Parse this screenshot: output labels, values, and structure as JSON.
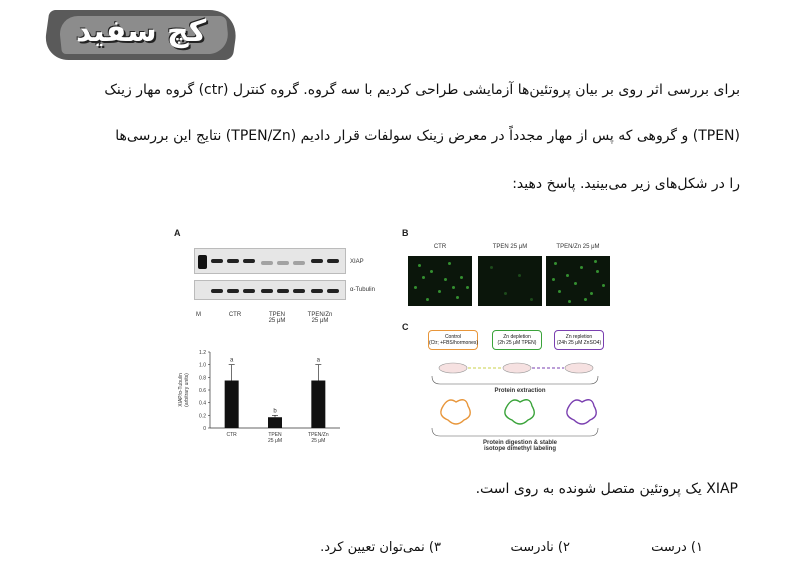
{
  "logo": {
    "text": "کچ سفید"
  },
  "question": {
    "line1": "برای بررسی اثر روی بر بیان پروتئین‌ها آزمایشی طراحی کردیم با سه گروه. گروه کنترل (ctr) گروه مهار زینک",
    "line2": "(TPEN) و گروهی که پس از مهار مجدداً در معرض زینک سولفات قرار دادیم (TPEN/Zn) نتایج این بررسی‌ها",
    "line3": "را در شکل‌های زیر می‌بینید. پاسخ دهید:"
  },
  "figure": {
    "panel_a": "A",
    "panel_b": "B",
    "panel_c": "C",
    "blot_labels": {
      "xiap": "XIAP",
      "tubulin": "α-Tubulin",
      "marker": "M"
    },
    "lane_groups": [
      "CTR",
      "TPEN\n25 μM",
      "TPEN/Zn\n25 μM"
    ],
    "micro_labels": [
      "CTR",
      "TPEN 25 μM",
      "TPEN/Zn 25 μM"
    ],
    "scheme": {
      "control": "Control\n(Ctr; +FBS/hormones)",
      "depletion": "Zn depletion\n(2h 25 μM TPEN)",
      "repletion": "Zn repletion\n(24h 25 μM ZnSO4)",
      "extraction": "Protein extraction",
      "digestion": "Protein digestion & stable\nisotope dimethyl labeling"
    },
    "colors": {
      "control": "#e8963a",
      "depletion": "#3aa33a",
      "repletion": "#7a3fb0"
    }
  },
  "chart_data": {
    "type": "bar",
    "categories": [
      "CTR",
      "TPEN\n25 μM",
      "TPEN/Zn\n25 μM"
    ],
    "values": [
      0.75,
      0.17,
      0.75
    ],
    "errors": [
      0.25,
      0.03,
      0.25
    ],
    "annotations": [
      "a",
      "b",
      "a"
    ],
    "ylabel": "XIAP/α-Tubulin\n(arbitrary units)",
    "yticks": [
      "0",
      "0.2",
      "0.4",
      "0.6",
      "0.8",
      "1.0",
      "1.2"
    ],
    "ylim": [
      0,
      1.2
    ]
  },
  "statement": "XIAP یک پروتئین متصل شونده به روی است.",
  "options": {
    "opt1": "۱) درست",
    "opt2": "۲) نادرست",
    "opt3": "۳) نمی‌توان تعیین کرد."
  }
}
